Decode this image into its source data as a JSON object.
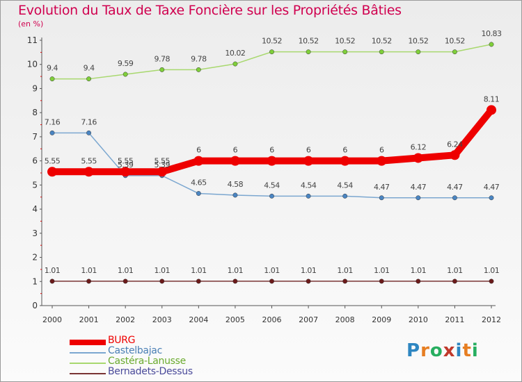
{
  "header": {
    "title": "Evolution du Taux de Taxe Foncière sur les Propriétés Bâties",
    "unit": "(en %)"
  },
  "colors": {
    "title": "#d0004f",
    "axis": "#404040",
    "tick_red": "#e00000",
    "grid": "#d0d0d0"
  },
  "logo": {
    "letters": [
      "P",
      "r",
      "o",
      "x",
      "i",
      "t",
      "i"
    ],
    "colors": [
      "#2e86c1",
      "#e67e22",
      "#27ae60",
      "#c0392b",
      "#2e86c1",
      "#e67e22",
      "#27ae60"
    ]
  },
  "chart_data": {
    "type": "line",
    "title": "Evolution du Taux de Taxe Foncière sur les Propriétés Bâties",
    "ylabel": "(en %)",
    "xlabel": "",
    "x": [
      "2000",
      "2001",
      "2002",
      "2003",
      "2004",
      "2005",
      "2006",
      "2007",
      "2008",
      "2009",
      "2010",
      "2011",
      "2012"
    ],
    "yticks": [
      "0",
      "1",
      "2",
      "3",
      "4",
      "5",
      "6",
      "7",
      "8",
      "9",
      "10",
      "11"
    ],
    "ylim": [
      0,
      11
    ],
    "grid": false,
    "legend_position": "bottom-left",
    "series": [
      {
        "name": "BURG",
        "color": "#ee0000",
        "marker": "#ee0000",
        "width": 10,
        "values": [
          5.55,
          5.55,
          5.55,
          5.55,
          6,
          6,
          6,
          6,
          6,
          6,
          6.12,
          6.24,
          8.11
        ],
        "labels": [
          "5.55",
          "5.55",
          "5.55",
          "5.55",
          "6",
          "6",
          "6",
          "6",
          "6",
          "6",
          "6.12",
          "6.24",
          "8.11"
        ]
      },
      {
        "name": "Castelbajac",
        "color": "#7ba7d0",
        "marker": "#4a85c2",
        "width": 1.5,
        "values": [
          7.16,
          7.16,
          5.39,
          5.39,
          4.65,
          4.58,
          4.54,
          4.54,
          4.54,
          4.47,
          4.47,
          4.47,
          4.47
        ],
        "labels": [
          "7.16",
          "7.16",
          "5.39",
          "5.39",
          "4.65",
          "4.58",
          "4.54",
          "4.54",
          "4.54",
          "4.47",
          "4.47",
          "4.47",
          "4.47"
        ]
      },
      {
        "name": "Castéra-Lanusse",
        "color": "#a8d86e",
        "marker": "#7fcf3a",
        "width": 1.5,
        "values": [
          9.4,
          9.4,
          9.59,
          9.78,
          9.78,
          10.02,
          10.52,
          10.52,
          10.52,
          10.52,
          10.52,
          10.52,
          10.83
        ],
        "labels": [
          "9.4",
          "9.4",
          "9.59",
          "9.78",
          "9.78",
          "10.02",
          "10.52",
          "10.52",
          "10.52",
          "10.52",
          "10.52",
          "10.52",
          "10.83"
        ]
      },
      {
        "name": "Bernadets-Dessus",
        "color": "#7a3434",
        "marker": "#6b1a1a",
        "width": 1.5,
        "values": [
          1.01,
          1.01,
          1.01,
          1.01,
          1.01,
          1.01,
          1.01,
          1.01,
          1.01,
          1.01,
          1.01,
          1.01,
          1.01
        ],
        "labels": [
          "1.01",
          "1.01",
          "1.01",
          "1.01",
          "1.01",
          "1.01",
          "1.01",
          "1.01",
          "1.01",
          "1.01",
          "1.01",
          "1.01",
          "1.01"
        ]
      }
    ]
  }
}
